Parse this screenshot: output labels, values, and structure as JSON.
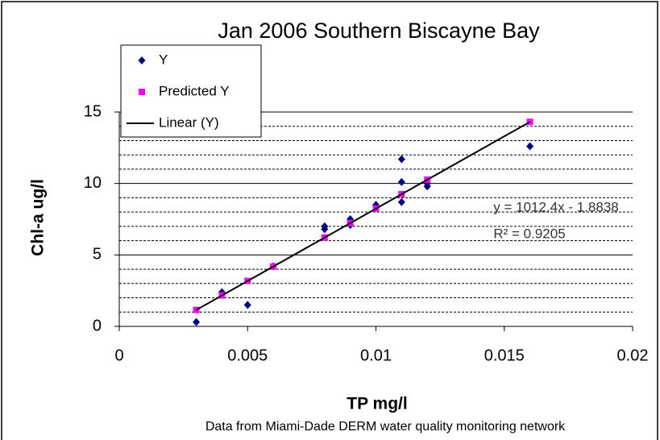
{
  "chart_data": {
    "type": "scatter",
    "title": "Jan 2006 Southern Biscayne Bay",
    "x_label": "TP mg/l",
    "y_label": "Chl-a ug/l",
    "note": "Data from Miami-Dade DERM water quality monitoring network",
    "equation": "y = 1012.4x - 1.8838",
    "r_squared": "R² = 0.9205",
    "xlim": [
      0,
      0.02
    ],
    "xticks": [
      0,
      0.005,
      0.01,
      0.015,
      0.02
    ],
    "ylim": [
      0,
      15
    ],
    "yticks": [
      0,
      5,
      10,
      15
    ],
    "minor_yticks": [
      1,
      2,
      3,
      4,
      6,
      7,
      8,
      9,
      11,
      12,
      13,
      14
    ],
    "grid": true,
    "legend": "top-left",
    "series": [
      {
        "name": "Y",
        "color": "#000080",
        "marker": "diamond",
        "x": [
          0.003,
          0.004,
          0.005,
          0.006,
          0.008,
          0.008,
          0.009,
          0.009,
          0.01,
          0.011,
          0.011,
          0.011,
          0.012,
          0.012,
          0.016
        ],
        "values": [
          0.3,
          2.4,
          1.5,
          4.2,
          7.0,
          6.8,
          7.5,
          7.1,
          8.5,
          11.7,
          10.1,
          8.7,
          10.0,
          9.8,
          12.6
        ]
      },
      {
        "name": "Predicted Y",
        "color": "#ff00ff",
        "marker": "square",
        "x": [
          0.003,
          0.004,
          0.005,
          0.006,
          0.008,
          0.009,
          0.01,
          0.011,
          0.012,
          0.016
        ],
        "values": [
          1.15,
          2.17,
          3.18,
          4.19,
          6.22,
          7.23,
          8.24,
          9.25,
          10.27,
          14.31
        ]
      },
      {
        "name": "Linear (Y)",
        "color": "#000000",
        "marker": "line",
        "x": [
          0.003,
          0.016
        ],
        "values": [
          1.15,
          14.31
        ]
      }
    ]
  }
}
